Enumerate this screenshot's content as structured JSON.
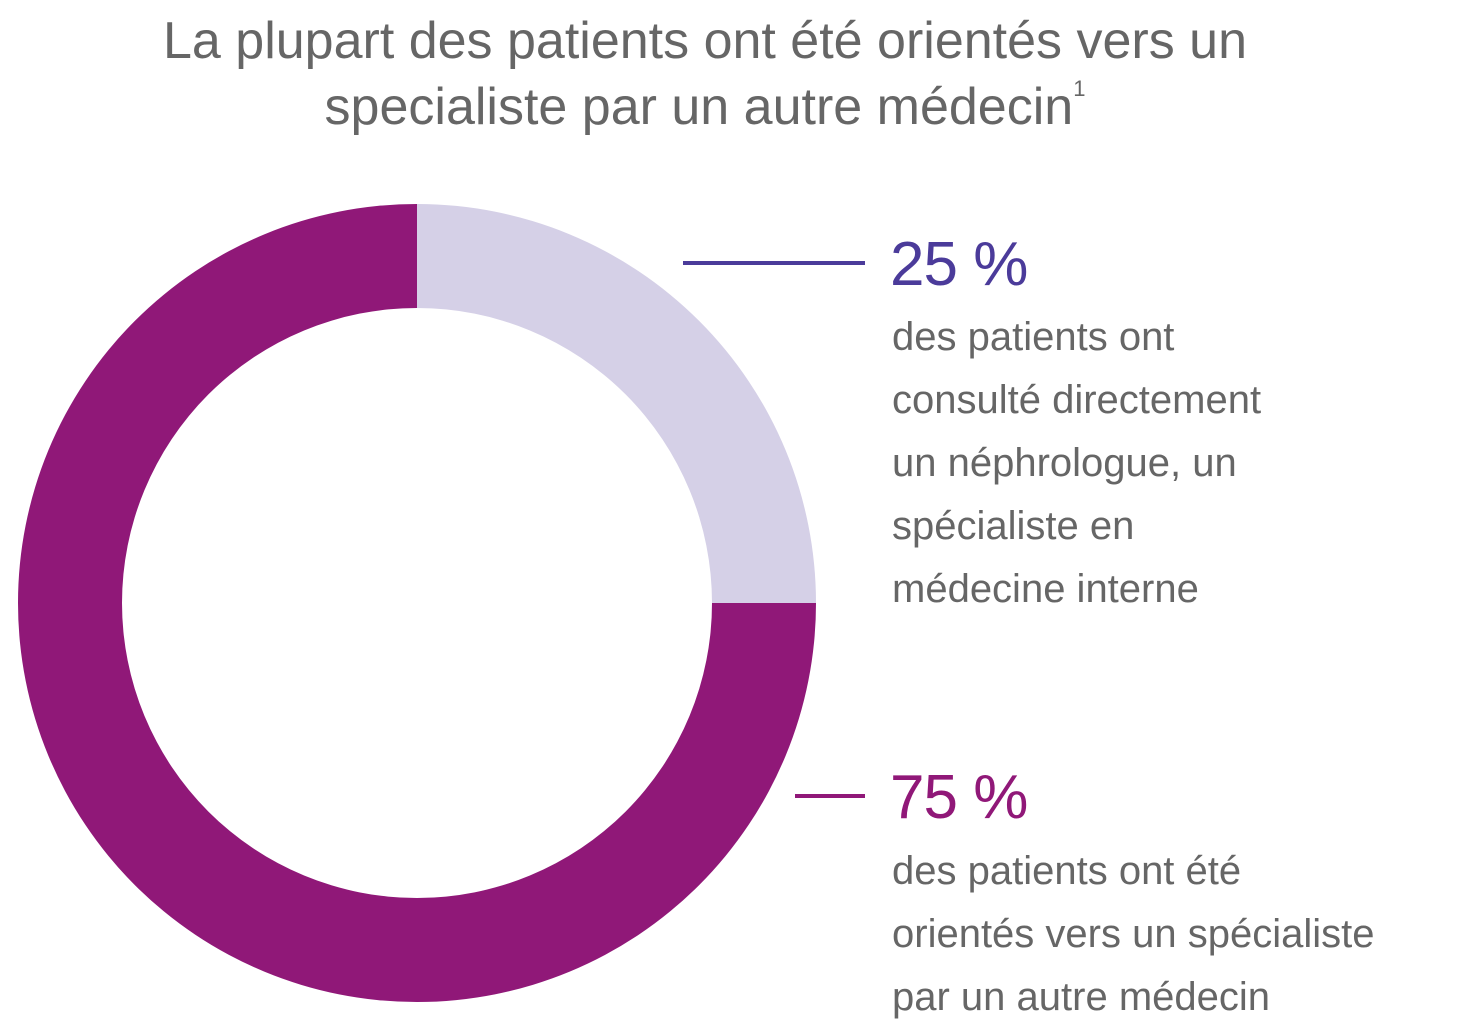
{
  "title": {
    "line1": "La plupart des patients ont été orientés vers un",
    "line2": "specialiste par un autre médecin",
    "footnote": "1"
  },
  "colors": {
    "direct": "#d5d0e7",
    "referred": "#901878",
    "direct_label": "#4b3b9a",
    "referred_label": "#901878",
    "text": "#666666"
  },
  "chart_data": {
    "type": "pie",
    "variant": "donut",
    "title": "La plupart des patients ont été orientés vers un specialiste par un autre médecin",
    "slices": [
      {
        "label": "25 %",
        "value": 25,
        "color": "#d5d0e7",
        "description": [
          "des patients ont",
          "consulté directement",
          "un néphrologue, un",
          "spécialiste en",
          "médecine interne"
        ]
      },
      {
        "label": "75 %",
        "value": 75,
        "color": "#901878",
        "description": [
          "des patients ont été",
          "orientés vers un spécialiste",
          "par un autre médecin"
        ]
      }
    ]
  }
}
